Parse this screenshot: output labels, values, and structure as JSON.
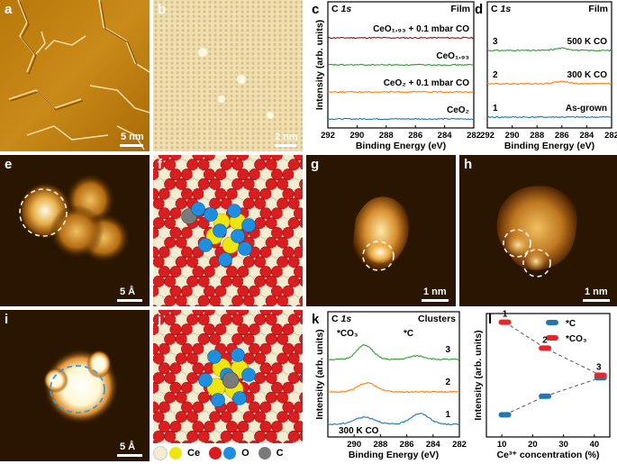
{
  "panels": {
    "a": {
      "label": "a",
      "scale": "5 nm"
    },
    "b": {
      "label": "b",
      "scale": "2 nm"
    },
    "c": {
      "label": "c"
    },
    "d": {
      "label": "d"
    },
    "e": {
      "label": "e",
      "scale": "5 Å"
    },
    "f": {
      "label": "f"
    },
    "g": {
      "label": "g",
      "scale": "1 nm"
    },
    "h": {
      "label": "h",
      "scale": "1 nm"
    },
    "i": {
      "label": "i",
      "scale": "5 Å"
    },
    "j": {
      "label": "j"
    },
    "k": {
      "label": "k"
    },
    "l": {
      "label": "l"
    }
  },
  "legend": {
    "ce": "Ce",
    "o": "O",
    "c": "C"
  },
  "colors": {
    "ce_light": "#f2edd0",
    "ce_yellow": "#f0e60f",
    "oxygen": "#d81e1e",
    "oxygen_ads": "#1e8fe0",
    "carbon": "#7a7a7a",
    "stm_dark": "#2a1500",
    "stm_light": "#fff7d0"
  },
  "chart_data": [
    {
      "id": "c",
      "type": "line",
      "title": "C 1s",
      "tag": "Film",
      "xlabel": "Binding Energy (eV)",
      "ylabel": "Intensity (arb. units)",
      "xlim": [
        292,
        282
      ],
      "xticks": [
        292,
        290,
        288,
        286,
        284,
        282
      ],
      "series": [
        {
          "name": "CeO₁.₉₃ + 0.1 mbar CO",
          "color": "#8b1a1a",
          "offset": 3
        },
        {
          "name": "CeO₁.₉₃",
          "color": "#2ca02c",
          "offset": 2
        },
        {
          "name": "CeO₂ + 0.1 mbar CO",
          "color": "#ff7f0e",
          "offset": 1
        },
        {
          "name": "CeO₂",
          "color": "#1f77b4",
          "offset": 0
        }
      ]
    },
    {
      "id": "d",
      "type": "line",
      "title": "C 1s",
      "tag": "Film",
      "xlabel": "Binding Energy (eV)",
      "xlim": [
        292,
        282
      ],
      "xticks": [
        292,
        290,
        288,
        286,
        284,
        282
      ],
      "series": [
        {
          "name": "500 K CO",
          "index": "3",
          "color": "#2ca02c",
          "offset": 2
        },
        {
          "name": "300 K CO",
          "index": "2",
          "color": "#ff7f0e",
          "offset": 1
        },
        {
          "name": "As-grown",
          "index": "1",
          "color": "#1f77b4",
          "offset": 0
        }
      ]
    },
    {
      "id": "k",
      "type": "line",
      "title": "C 1s",
      "tag": "Clusters",
      "xlabel": "Binding Energy (eV)",
      "ylabel": "Intensity (arb. units)",
      "xlim": [
        292,
        282
      ],
      "xticks": [
        290,
        288,
        286,
        284,
        282
      ],
      "annotations": [
        "*CO₃",
        "*C",
        "300 K CO"
      ],
      "series": [
        {
          "name": "3",
          "color": "#2ca02c",
          "offset": 2
        },
        {
          "name": "2",
          "color": "#ff7f0e",
          "offset": 1
        },
        {
          "name": "1",
          "color": "#1f77b4",
          "offset": 0
        }
      ]
    },
    {
      "id": "l",
      "type": "scatter",
      "xlabel": "Ce³⁺ concentration (%)",
      "ylabel": "Intensity (arb. units)",
      "xlim": [
        5,
        45
      ],
      "xticks": [
        10,
        20,
        30,
        40
      ],
      "ylim": [
        0,
        1
      ],
      "point_labels": [
        "1",
        "2",
        "3"
      ],
      "series": [
        {
          "name": "*C",
          "color": "#1f77b4",
          "x": [
            11,
            24,
            42
          ],
          "y": [
            0.18,
            0.33,
            0.48
          ]
        },
        {
          "name": "*CO₃",
          "color": "#e8262a",
          "x": [
            11,
            24,
            42
          ],
          "y": [
            0.93,
            0.72,
            0.5
          ]
        }
      ]
    }
  ]
}
